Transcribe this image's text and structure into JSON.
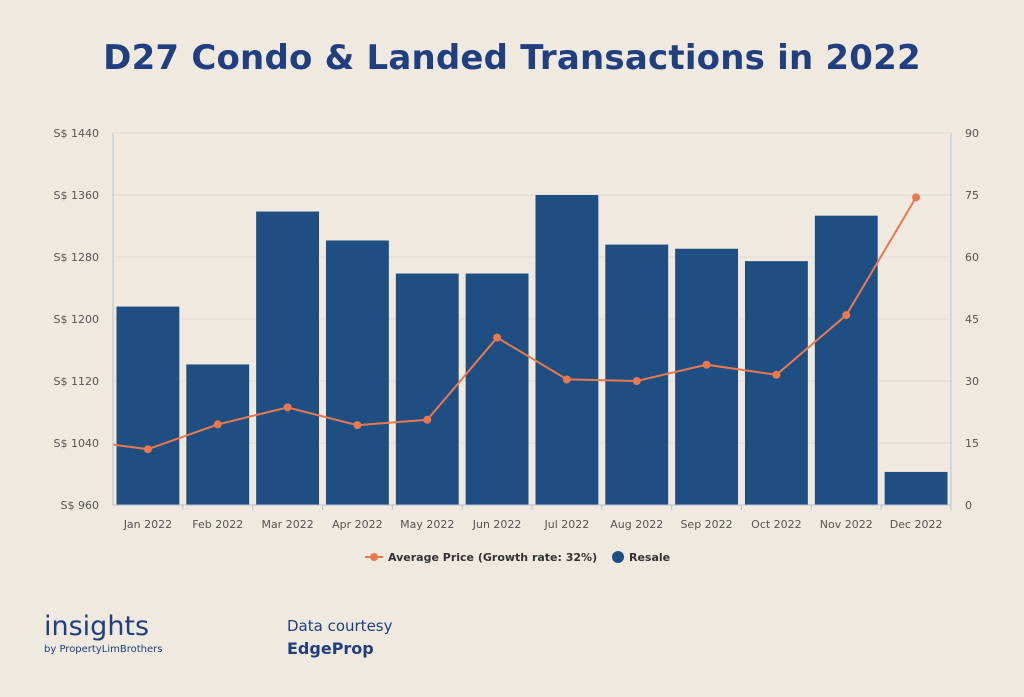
{
  "title": "D27 Condo & Landed Transactions in 2022",
  "branding": {
    "main": "insights",
    "sub": "by PropertyLimBrothers"
  },
  "credit": {
    "line1": "Data courtesy",
    "line2": "EdgeProp"
  },
  "colors": {
    "bar": "#1f4e82",
    "line": "#e8794f",
    "title": "#1f3f80",
    "background": "#efe9df"
  },
  "chart_data": {
    "type": "bar",
    "title": "D27 Condo & Landed Transactions in 2022",
    "categories": [
      "Jan 2022",
      "Feb 2022",
      "Mar 2022",
      "Apr 2022",
      "May 2022",
      "Jun 2022",
      "Jul 2022",
      "Aug 2022",
      "Sep 2022",
      "Oct 2022",
      "Nov 2022",
      "Dec 2022"
    ],
    "left_axis": {
      "ticks": [
        "S$ 960",
        "S$ 1040",
        "S$ 1120",
        "S$ 1200",
        "S$ 1280",
        "S$ 1360",
        "S$ 1440"
      ],
      "range": [
        960,
        1440
      ]
    },
    "right_axis": {
      "ticks": [
        "0",
        "15",
        "30",
        "45",
        "60",
        "75",
        "90"
      ],
      "range": [
        0,
        90
      ]
    },
    "series": [
      {
        "name": "Resale",
        "type": "bar",
        "axis": "right",
        "values": [
          48,
          34,
          71,
          64,
          56,
          56,
          75,
          63,
          62,
          59,
          70,
          8
        ]
      },
      {
        "name": "Average Price (Growth rate: 32%)",
        "type": "line",
        "axis": "left",
        "values": [
          1032,
          1064,
          1086,
          1063,
          1070,
          1176,
          1122,
          1120,
          1141,
          1128,
          1205,
          1357
        ]
      }
    ],
    "line_start_left_edge": 1038,
    "legend_position": "bottom-center",
    "grid": true
  }
}
